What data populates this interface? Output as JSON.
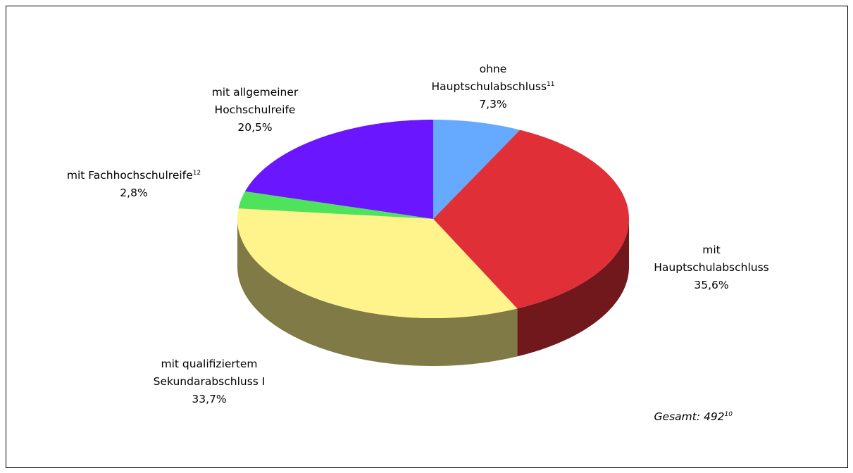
{
  "chart_data": {
    "type": "pie3d",
    "categories": [
      "ohne Hauptschulabschluss",
      "mit Hauptschulabschluss",
      "mit qualifiziertem Sekundarabschluss I",
      "mit Fachhochschulreife",
      "mit allgemeiner Hochschulreife"
    ],
    "footnotes": [
      "11",
      null,
      null,
      "12",
      null
    ],
    "values": [
      7.3,
      35.6,
      33.7,
      2.8,
      20.5
    ],
    "value_labels": [
      "7,3%",
      "35,6%",
      "33,7%",
      "2,8%",
      "20,5%"
    ],
    "colors": [
      "#66aaff",
      "#e02f36",
      "#fff48c",
      "#4ee35a",
      "#6a16ff"
    ],
    "annotation": "Gesamt: 492",
    "annotation_footnote": "10"
  }
}
